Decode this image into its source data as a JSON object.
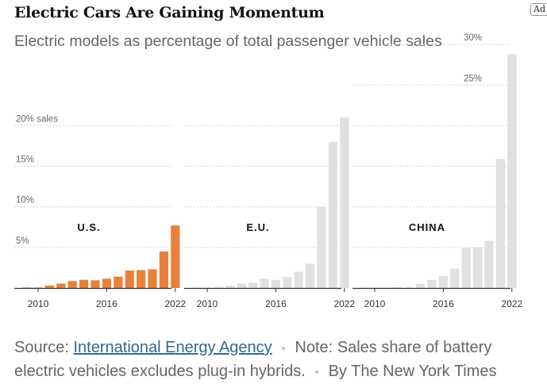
{
  "header": {
    "title": "Electric Cars Are Gaining Momentum",
    "subtitle": "Electric models as percentage of total passenger vehicle sales",
    "ad_label": "Ad"
  },
  "colors": {
    "us": "#e8803a",
    "other": "#e0e0e0",
    "grid": "#d6d6d6",
    "axis": "#333333",
    "text_muted": "#666666",
    "link": "#326891"
  },
  "chart_data": [
    {
      "type": "bar",
      "title": "U.S.",
      "x": [
        2009,
        2010,
        2011,
        2012,
        2013,
        2014,
        2015,
        2016,
        2017,
        2018,
        2019,
        2020,
        2021,
        2022
      ],
      "values": [
        0.02,
        0.05,
        0.3,
        0.55,
        0.85,
        1.0,
        0.95,
        1.15,
        1.4,
        2.15,
        2.2,
        2.3,
        4.5,
        7.7
      ],
      "ylim": [
        0,
        20
      ],
      "yticks": [
        5,
        10,
        15,
        20
      ],
      "ytick_labels": [
        "5%",
        "10%",
        "15%",
        "20% sales"
      ],
      "xtick_labels": [
        "2010",
        "2016",
        "2022"
      ],
      "color": "us"
    },
    {
      "type": "bar",
      "title": "E.U.",
      "x": [
        2009,
        2010,
        2011,
        2012,
        2013,
        2014,
        2015,
        2016,
        2017,
        2018,
        2019,
        2020,
        2021,
        2022
      ],
      "values": [
        0.02,
        0.05,
        0.15,
        0.3,
        0.55,
        0.65,
        1.15,
        1.0,
        1.35,
        2.0,
        3.0,
        10.0,
        18.0,
        21.0
      ],
      "ylim": [
        0,
        20
      ],
      "xtick_labels": [
        "2010",
        "2016",
        "2022"
      ],
      "color": "other"
    },
    {
      "type": "bar",
      "title": "CHINA",
      "x": [
        2009,
        2010,
        2011,
        2012,
        2013,
        2014,
        2015,
        2016,
        2017,
        2018,
        2019,
        2020,
        2021,
        2022
      ],
      "values": [
        0.02,
        0.05,
        0.05,
        0.1,
        0.1,
        0.5,
        1.0,
        1.5,
        2.4,
        4.9,
        5.0,
        5.8,
        15.9,
        28.8
      ],
      "ylim": [
        0,
        30
      ],
      "yticks": [
        25,
        30
      ],
      "ytick_labels": [
        "25%",
        "30%"
      ],
      "xtick_labels": [
        "2010",
        "2016",
        "2022"
      ],
      "color": "other"
    }
  ],
  "footer": {
    "source_prefix": "Source:",
    "source_link": "International Energy Agency",
    "note": "Note: Sales share of battery electric vehicles excludes plug-in hybrids.",
    "byline": "By The New York Times"
  }
}
